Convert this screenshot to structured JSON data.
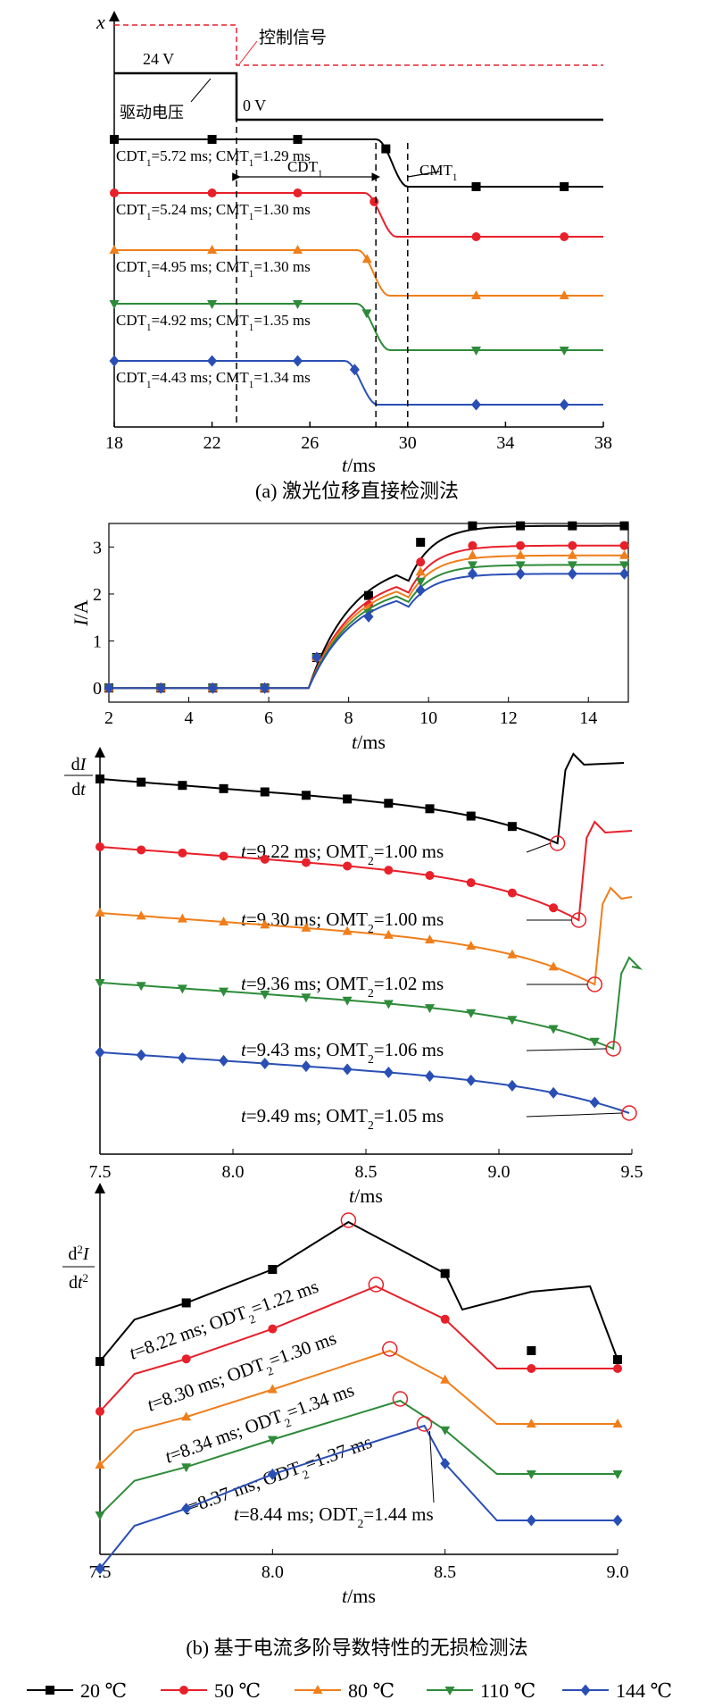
{
  "colors": {
    "c20": "#000000",
    "c50": "#e8202a",
    "c80": "#f07e1a",
    "c110": "#2e8b3a",
    "c144": "#2a4fb4",
    "control": "#e8202a"
  },
  "legend": [
    {
      "label": "20 ℃",
      "marker": "square",
      "color": "#000000"
    },
    {
      "label": "50 ℃",
      "marker": "circle",
      "color": "#e8202a"
    },
    {
      "label": "80 ℃",
      "marker": "triangle-up",
      "color": "#f07e1a"
    },
    {
      "label": "110 ℃",
      "marker": "triangle-down",
      "color": "#2e8b3a"
    },
    {
      "label": "144 ℃",
      "marker": "diamond",
      "color": "#2a4fb4"
    }
  ],
  "panel_a": {
    "caption": "(a) 激光位移直接检测法",
    "ylabel": "x",
    "xlabel": "t/ms",
    "xticks": [
      "18",
      "22",
      "26",
      "30",
      "34",
      "38"
    ],
    "labels": {
      "v24": "24 V",
      "v0": "0 V",
      "control": "控制信号",
      "drive": "驱动电压",
      "cdt": "CDT",
      "cmt": "CMT",
      "sub1": "1"
    }
  },
  "panel_b_caption": "(b) 基于电流多阶导数特性的无损检测法",
  "chart_data": [
    {
      "type": "line",
      "title": "",
      "xlabel": "t/ms",
      "ylabel": "x",
      "xlim": [
        18,
        38
      ],
      "series": [
        {
          "name": "20 ℃",
          "annotation": "CDT₁=5.72 ms; CMT₁=1.29 ms",
          "CDT1_ms": 5.72,
          "CMT1_ms": 1.29
        },
        {
          "name": "50 ℃",
          "annotation": "CDT₁=5.24 ms; CMT₁=1.30 ms",
          "CDT1_ms": 5.24,
          "CMT1_ms": 1.3
        },
        {
          "name": "80 ℃",
          "annotation": "CDT₁=4.95 ms; CMT₁=1.30 ms",
          "CDT1_ms": 4.95,
          "CMT1_ms": 1.3
        },
        {
          "name": "110 ℃",
          "annotation": "CDT₁=4.92 ms; CMT₁=1.35 ms",
          "CDT1_ms": 4.92,
          "CMT1_ms": 1.35
        },
        {
          "name": "144 ℃",
          "annotation": "CDT₁=4.43 ms; CMT₁=1.34 ms",
          "CDT1_ms": 4.43,
          "CMT1_ms": 1.34
        }
      ],
      "drive_voltage": {
        "before": "24 V",
        "after": "0 V",
        "switch_ms": 23
      }
    },
    {
      "type": "line",
      "xlabel": "t/ms",
      "ylabel": "I/A",
      "xlim": [
        2,
        15
      ],
      "ylim": [
        -0.3,
        3.5
      ],
      "xticks": [
        2,
        4,
        6,
        8,
        10,
        12,
        14
      ],
      "yticks": [
        0,
        1,
        2,
        3
      ],
      "switch_on_ms": 7,
      "series": [
        {
          "name": "20 ℃",
          "plateau": 3.45,
          "knee": 2.4
        },
        {
          "name": "50 ℃",
          "plateau": 3.03,
          "knee": 2.15
        },
        {
          "name": "80 ℃",
          "plateau": 2.82,
          "knee": 2.05
        },
        {
          "name": "110 ℃",
          "plateau": 2.62,
          "knee": 1.95
        },
        {
          "name": "144 ℃",
          "plateau": 2.43,
          "knee": 1.85
        }
      ]
    },
    {
      "type": "line",
      "xlabel": "t/ms",
      "ylabel": "dI/dt",
      "xlim": [
        7.5,
        9.5
      ],
      "xticks": [
        7.5,
        8.0,
        8.5,
        9.0,
        9.5
      ],
      "series": [
        {
          "name": "20 ℃",
          "t_ms": 9.22,
          "annotation": "t=9.22 ms; OMT₂=1.00 ms"
        },
        {
          "name": "50 ℃",
          "t_ms": 9.3,
          "annotation": "t=9.30 ms; OMT₂=1.00 ms"
        },
        {
          "name": "80 ℃",
          "t_ms": 9.36,
          "annotation": "t=9.36 ms; OMT₂=1.02 ms"
        },
        {
          "name": "110 ℃",
          "t_ms": 9.43,
          "annotation": "t=9.43 ms; OMT₂=1.06 ms"
        },
        {
          "name": "144 ℃",
          "t_ms": 9.49,
          "annotation": "t=9.49 ms; OMT₂=1.05 ms"
        }
      ]
    },
    {
      "type": "line",
      "xlabel": "t/ms",
      "ylabel": "d²I/dt²",
      "xlim": [
        7.5,
        9.0
      ],
      "xticks": [
        7.5,
        8.0,
        8.5,
        9.0
      ],
      "series": [
        {
          "name": "20 ℃",
          "t_ms": 8.22,
          "annotation": "t=8.22 ms; ODT₂=1.22 ms"
        },
        {
          "name": "50 ℃",
          "t_ms": 8.3,
          "annotation": "t=8.30 ms; ODT₂=1.30 ms"
        },
        {
          "name": "80 ℃",
          "t_ms": 8.34,
          "annotation": "t=8.34 ms; ODT₂=1.34 ms"
        },
        {
          "name": "110 ℃",
          "t_ms": 8.37,
          "annotation": "t=8.37 ms; ODT₂=1.37 ms"
        },
        {
          "name": "144 ℃",
          "t_ms": 8.44,
          "annotation": "t=8.44 ms; ODT₂=1.44 ms"
        }
      ]
    }
  ]
}
